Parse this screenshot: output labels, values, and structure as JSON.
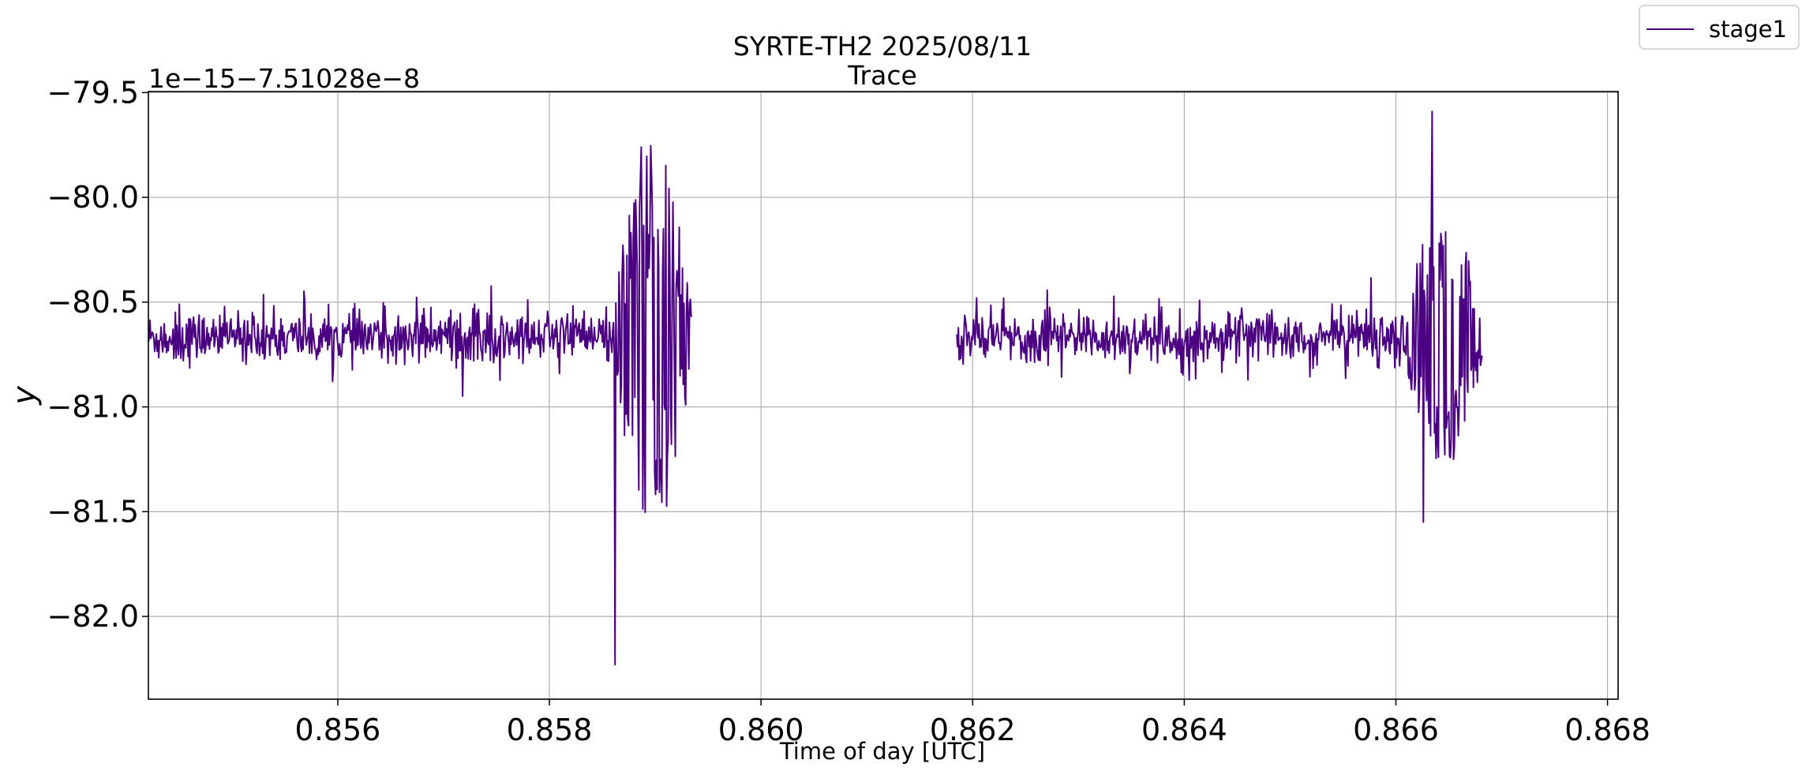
{
  "chart_data": {
    "type": "line",
    "title": "SYRTE-TH2 2025/08/11",
    "subtitle": "Trace",
    "xlabel": "Time of day [UTC]",
    "ylabel": "y",
    "offset_text": "1e−15−7.51028e−8",
    "xlim": [
      0.85421,
      0.8681
    ],
    "ylim": [
      -82.395,
      -79.495
    ],
    "xticks": [
      0.856,
      0.858,
      0.86,
      0.862,
      0.864,
      0.866,
      0.868
    ],
    "xtick_labels": [
      "0.856",
      "0.858",
      "0.860",
      "0.862",
      "0.864",
      "0.866",
      "0.868"
    ],
    "yticks": [
      -79.5,
      -80.0,
      -80.5,
      -81.0,
      -81.5,
      -82.0
    ],
    "ytick_labels": [
      "−79.5",
      "−80.0",
      "−80.5",
      "−81.0",
      "−81.5",
      "−82.0"
    ],
    "grid": true,
    "legend_position": "top-right",
    "color": "#4b0082",
    "series": [
      {
        "name": "stage1",
        "segments": [
          {
            "x_start": 0.85421,
            "x_end": 0.85935,
            "baseline": -80.67,
            "noise": 0.06,
            "burst_start": 0.8586,
            "burst_peak_high": -79.76,
            "burst_peak_low": -82.23,
            "burst_peak_low_x": 0.85862
          },
          {
            "x_start": 0.86185,
            "x_end": 0.86682,
            "baseline": -80.67,
            "noise": 0.06,
            "burst_start": 0.86608,
            "burst_peak_high": -79.59,
            "burst_peak_low": -81.55,
            "burst_peak_low_x": 0.86626
          }
        ]
      }
    ]
  }
}
